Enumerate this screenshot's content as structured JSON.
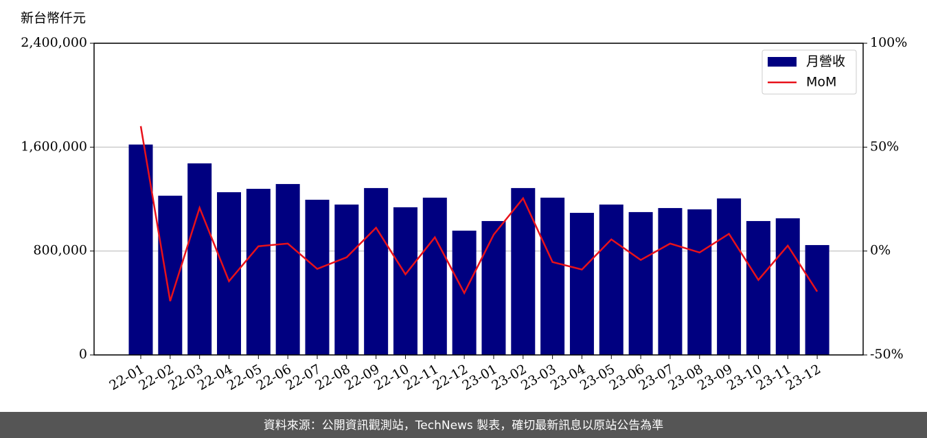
{
  "chart_data": {
    "type": "bar-line",
    "y_axis_label": "新台幣仟元",
    "source": "資料來源：公開資訊觀測站，TechNews 製表，確切最新訊息以原站公告為準",
    "categories": [
      "22-01",
      "22-02",
      "22-03",
      "22-04",
      "22-05",
      "22-06",
      "22-07",
      "22-08",
      "22-09",
      "22-10",
      "22-11",
      "22-12",
      "23-01",
      "23-02",
      "23-03",
      "23-04",
      "23-05",
      "23-06",
      "23-07",
      "23-08",
      "23-09",
      "23-10",
      "23-11",
      "23-12"
    ],
    "series": [
      {
        "name": "月營收",
        "type": "bar",
        "color": "#000080",
        "values": [
          1620000,
          1226000,
          1475000,
          1253000,
          1279000,
          1316000,
          1195000,
          1158000,
          1285000,
          1137000,
          1211000,
          957000,
          1031000,
          1285000,
          1211000,
          1094000,
          1158000,
          1100000,
          1131000,
          1121000,
          1205000,
          1031000,
          1052000,
          846000
        ]
      },
      {
        "name": "MoM",
        "type": "line",
        "axis": "y2",
        "color": "#e8111a",
        "values": [
          60.1,
          -24.1,
          20.8,
          -14.5,
          2.3,
          3.6,
          -8.6,
          -3.0,
          11.2,
          -11.2,
          6.6,
          -20.2,
          7.9,
          25.4,
          -5.3,
          -8.9,
          5.6,
          -4.3,
          3.6,
          -0.7,
          8.3,
          -13.9,
          2.6,
          -19.5
        ]
      }
    ],
    "ylim": [
      0,
      2400000
    ],
    "yticks": [
      0,
      {
        "value": 800000,
        "label": "800,000"
      },
      {
        "value": 1600000,
        "label": "1,600,000"
      },
      {
        "value": 2400000,
        "label": "2,400,000"
      }
    ],
    "y2lim": [
      -50,
      100
    ],
    "y2ticks": [
      {
        "value": -50,
        "label": "-50%"
      },
      {
        "value": 0,
        "label": "0%"
      },
      {
        "value": 50,
        "label": "50%"
      },
      {
        "value": 100,
        "label": "100%"
      }
    ],
    "grid": true,
    "legend": "upper right"
  }
}
